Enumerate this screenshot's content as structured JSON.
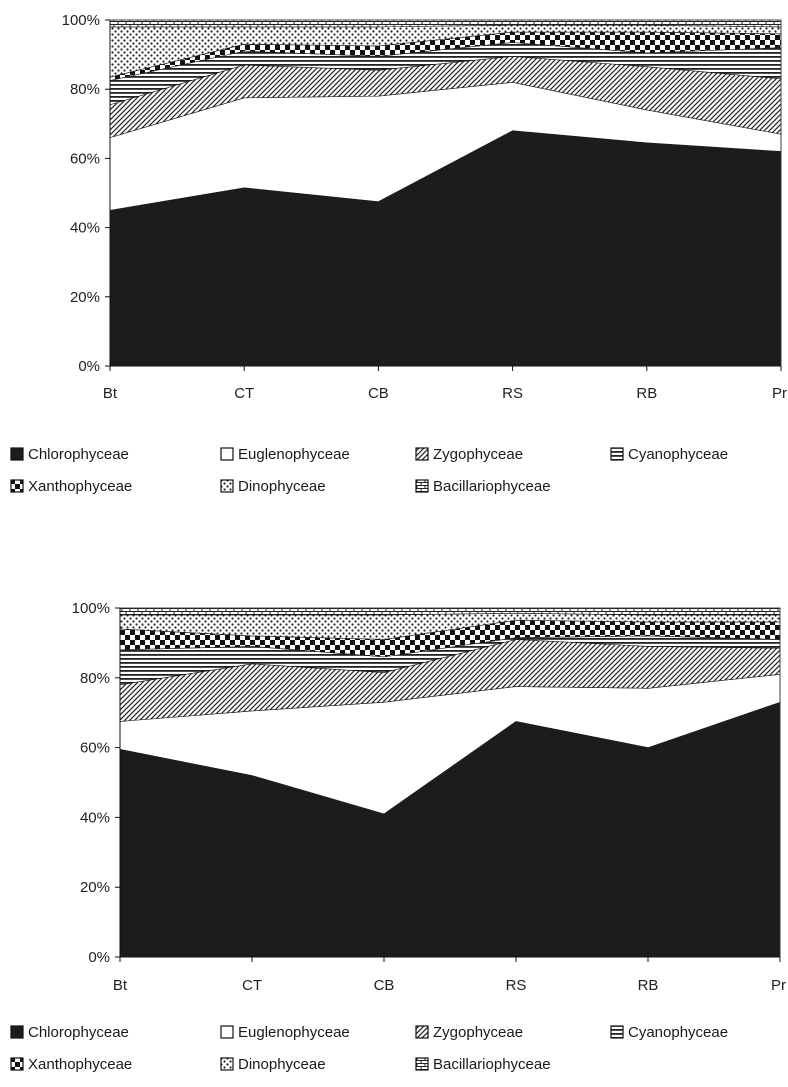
{
  "chart_data": [
    {
      "type": "area",
      "stacked_percent": true,
      "categories": [
        "Bt",
        "CT",
        "CB",
        "RS",
        "RB",
        "Pr"
      ],
      "y_ticks": [
        "0%",
        "20%",
        "40%",
        "60%",
        "80%",
        "100%"
      ],
      "ylim": [
        0,
        100
      ],
      "legend_position": "bottom",
      "series": [
        {
          "name": "Chlorophyceae",
          "values": [
            45,
            51.5,
            47.5,
            68,
            64.5,
            62
          ]
        },
        {
          "name": "Euglenophyceae",
          "values": [
            21,
            26,
            30.5,
            14,
            9.5,
            5
          ]
        },
        {
          "name": "Zygophyceae",
          "values": [
            9.5,
            9.5,
            7.5,
            7.5,
            12.5,
            16
          ]
        },
        {
          "name": "Cyanophyceae",
          "values": [
            7,
            4,
            4,
            4,
            4,
            9
          ]
        },
        {
          "name": "Xanthophyceae",
          "values": [
            1,
            2,
            3,
            3,
            6,
            4
          ]
        },
        {
          "name": "Dinophyceae",
          "values": [
            14.5,
            5,
            5.5,
            2,
            2,
            2
          ]
        },
        {
          "name": "Bacillariophyceae",
          "values": [
            2,
            2,
            2,
            1.5,
            1.5,
            2
          ]
        }
      ]
    },
    {
      "type": "area",
      "stacked_percent": true,
      "categories": [
        "Bt",
        "CT",
        "CB",
        "RS",
        "RB",
        "Pr"
      ],
      "y_ticks": [
        "0%",
        "20%",
        "40%",
        "60%",
        "80%",
        "100%"
      ],
      "ylim": [
        0,
        100
      ],
      "legend_position": "bottom",
      "series": [
        {
          "name": "Chlorophyceae",
          "values": [
            59.5,
            52,
            41,
            67.5,
            60,
            73
          ]
        },
        {
          "name": "Euglenophyceae",
          "values": [
            8,
            18.5,
            32,
            10,
            17,
            8
          ]
        },
        {
          "name": "Zygophyceae",
          "values": [
            10.5,
            13.5,
            8.5,
            13.5,
            12,
            7.5
          ]
        },
        {
          "name": "Cyanophyceae",
          "values": [
            10,
            5,
            4.5,
            0.5,
            3,
            2.5
          ]
        },
        {
          "name": "Xanthophyceae",
          "values": [
            6,
            3,
            5,
            5,
            4,
            5
          ]
        },
        {
          "name": "Dinophyceae",
          "values": [
            4,
            6,
            7,
            2,
            2,
            2
          ]
        },
        {
          "name": "Bacillariophyceae",
          "values": [
            2,
            2,
            2,
            1.5,
            2,
            2
          ]
        }
      ]
    }
  ],
  "colors": {
    "Chlorophyceae": "#1c1c1c",
    "Euglenophyceae": "#ffffff",
    "Zygophyceae": "hatch-diagonal",
    "Cyanophyceae": "hatch-horizontal",
    "Xanthophyceae": "checker",
    "Dinophyceae": "dotted",
    "Bacillariophyceae": "brick"
  }
}
